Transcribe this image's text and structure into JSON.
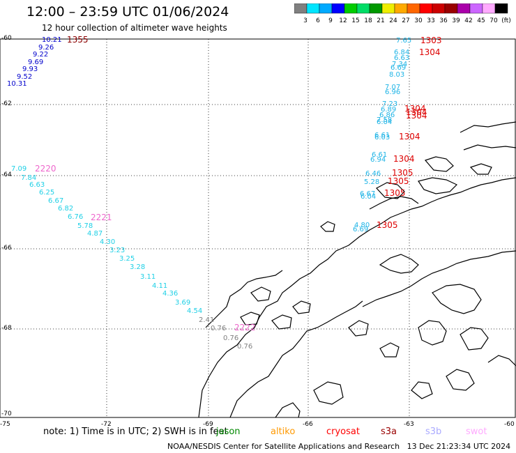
{
  "header": {
    "title": "12:00 – 23:59 UTC 01/06/2024",
    "subtitle": "12 hour collection of altimeter wave heights"
  },
  "legend": {
    "colors": [
      "#808080",
      "#00e5ff",
      "#00aaff",
      "#0000ff",
      "#00cc00",
      "#00dd66",
      "#009900",
      "#eeee00",
      "#ffaa00",
      "#ff6600",
      "#ff0000",
      "#cc0000",
      "#990000",
      "#aa00aa",
      "#cc66ff",
      "#ffaaff",
      "#000000"
    ],
    "labels": [
      "3",
      "6",
      "9",
      "12",
      "15",
      "18",
      "21",
      "24",
      "27",
      "30",
      "33",
      "36",
      "39",
      "42",
      "45",
      "70",
      "(ft)"
    ]
  },
  "axes": {
    "lon_labels": [
      "-75",
      "-72",
      "-69",
      "-66",
      "-63",
      "-60"
    ],
    "lat_labels": [
      "-60",
      "-62",
      "-64",
      "-66",
      "-68",
      "-70"
    ]
  },
  "tracks": {
    "blue": {
      "color": "#0000cc",
      "time_label": "1355",
      "values": [
        "10.21",
        "9.26",
        "9.22",
        "9.69",
        "9.93",
        "9.52",
        "10.31"
      ]
    },
    "cyan_2220": {
      "color": "#1fb4e6",
      "time_label": "2220",
      "values": [
        "7.09",
        "7.84",
        "6.63",
        "6.25",
        "6.67",
        "6.82",
        "6.76",
        "5.78",
        "4.87",
        "4.30",
        "3.23",
        "3.25",
        "3.28",
        "3.11",
        "4.11",
        "4.36",
        "3.69",
        "4.54"
      ]
    },
    "mid_label": "2221",
    "gray": {
      "color": "#808080",
      "time_label": "2222",
      "values": [
        "2.41",
        "0.76",
        "0.76",
        "0.76"
      ]
    },
    "east": {
      "color": "#1fb4e6",
      "time_labels": [
        "1303",
        "1304",
        "1304",
        "1304",
        "1304",
        "1304",
        "1304",
        "1305",
        "1305",
        "1305",
        "1305"
      ],
      "values": [
        "7.65",
        "6.84",
        "6.63",
        "7.34",
        "6.69",
        "8.03",
        "7.07",
        "6.96",
        "7.23",
        "6.89",
        "6.86",
        "7.58",
        "6.04",
        "6.61",
        "6.03",
        "6.61",
        "6.94",
        "6.46",
        "5.28",
        "6.67",
        "6.04",
        "4.80",
        "6.69"
      ]
    }
  },
  "footer": {
    "note": "note: 1) Time is in UTC; 2) SWH is in feet",
    "missions": [
      {
        "name": "jason",
        "color": "#008800"
      },
      {
        "name": "altiko",
        "color": "#ff9900"
      },
      {
        "name": "cryosat",
        "color": "#ff0000"
      },
      {
        "name": "s3a",
        "color": "#990000"
      },
      {
        "name": "s3b",
        "color": "#aaaaff"
      },
      {
        "name": "swot",
        "color": "#ffaaff"
      }
    ],
    "credit": "NOAA/NESDIS Center for Satellite Applications and Research",
    "timestamp": "13 Dec 21:23:34 UTC 2024"
  }
}
